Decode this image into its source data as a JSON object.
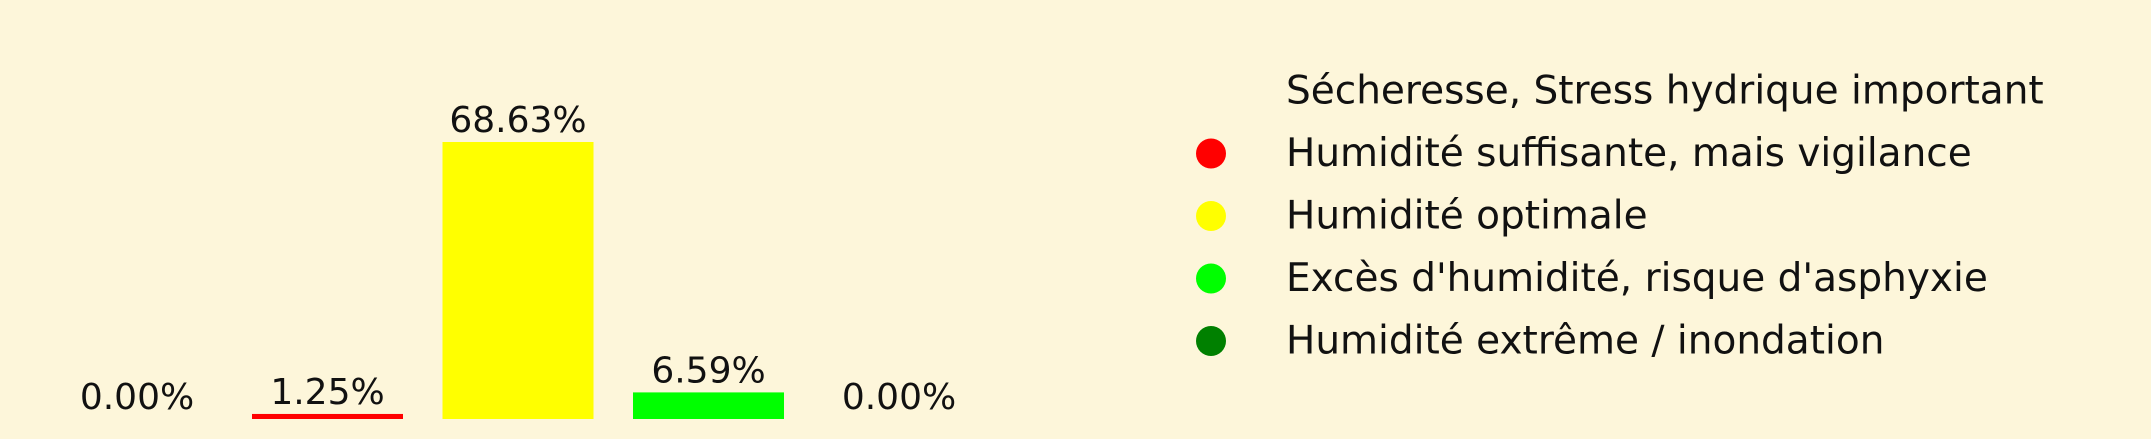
{
  "background": "#fdf6da",
  "chart_data": {
    "type": "bar",
    "title": "",
    "xlabel": "",
    "ylabel": "",
    "ylim": [
      0,
      72
    ],
    "grid": false,
    "legend_placement": "right",
    "values": [
      0.0,
      1.25,
      68.63,
      6.59,
      0.0
    ],
    "labels": [
      "0.00%",
      "1.25%",
      "68.63%",
      "6.59%",
      "0.00%"
    ],
    "colors": [
      "#fdf6da",
      "#ff0000",
      "#ffff00",
      "#00ff00",
      "#008000"
    ],
    "legend": [
      {
        "label": "Sécheresse, Stress hydrique important",
        "color": "#fdf6da"
      },
      {
        "label": "Humidité suffisante, mais vigilance",
        "color": "#ff0000"
      },
      {
        "label": "Humidité optimale",
        "color": "#ffff00"
      },
      {
        "label": "Excès d'humidité, risque d'asphyxie",
        "color": "#00ff00"
      },
      {
        "label": "Humidité extrême / inondation",
        "color": "#008000"
      }
    ]
  }
}
